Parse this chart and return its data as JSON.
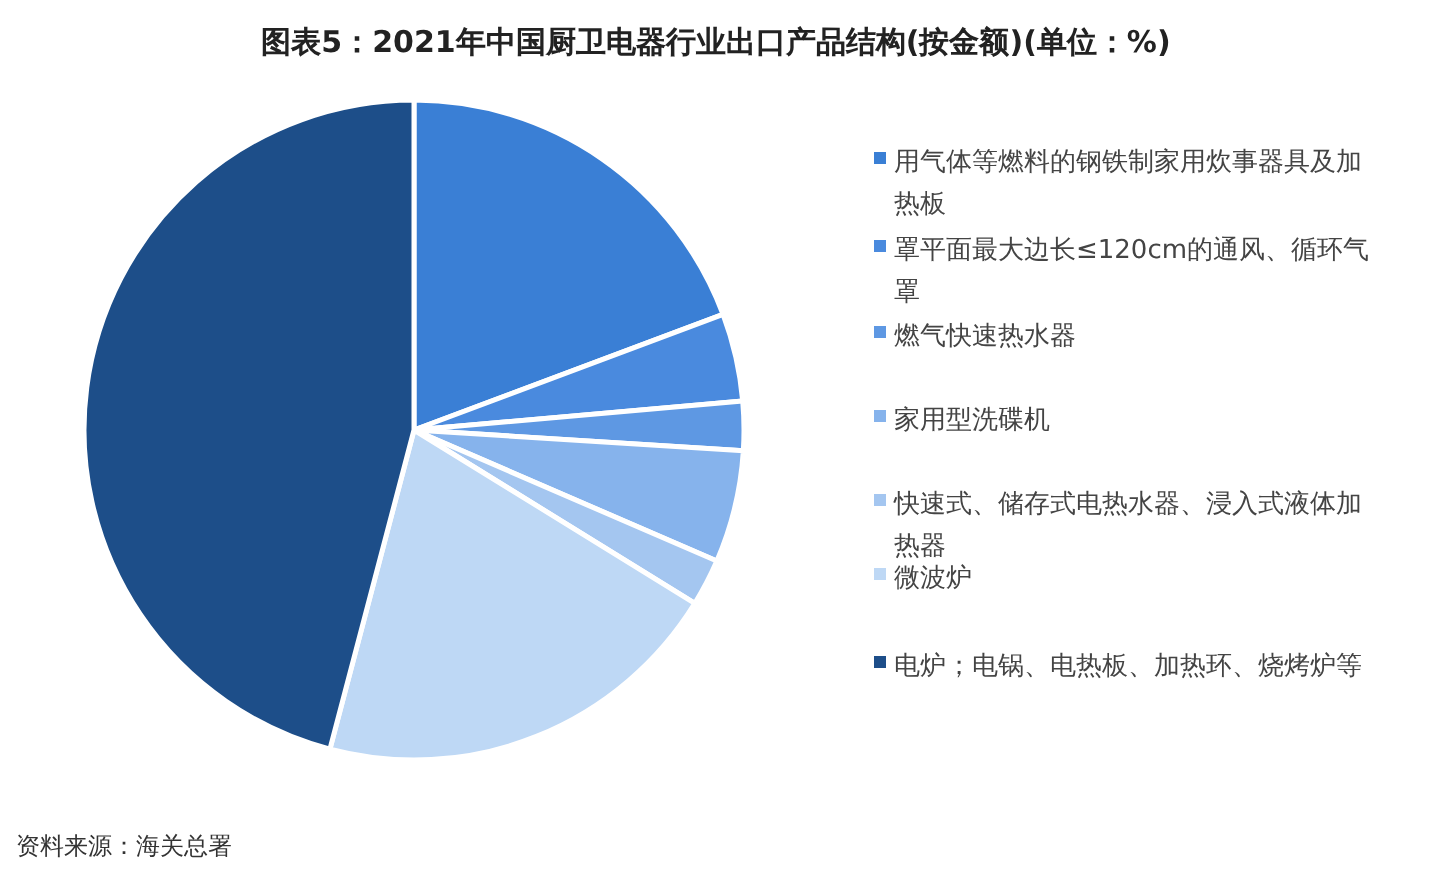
{
  "chart_data": {
    "type": "pie",
    "title": "图表5：2021年中国厨卫电器行业出口产品结构(按金额)(单位：%)",
    "categories": [
      "用气体等燃料的钢铁制家用炊事器具及加热板",
      "罩平面最大边长≤120cm的通风、循环气罩",
      "燃气快速热水器",
      "家用型洗碟机",
      "快速式、储存式电热水器、浸入式液体加热器",
      "微波炉",
      "电炉；电锅、电热板、加热环、烧烤炉等"
    ],
    "values": [
      19.3,
      4.3,
      2.4,
      5.5,
      2.3,
      20.3,
      45.9
    ],
    "colors": [
      "#3a7fd5",
      "#4a8ade",
      "#5e98e3",
      "#86b3ec",
      "#a4c6f0",
      "#bed8f5",
      "#1d4e89"
    ],
    "legend": "right",
    "annotations": [
      "资料来源：海关总署"
    ]
  }
}
